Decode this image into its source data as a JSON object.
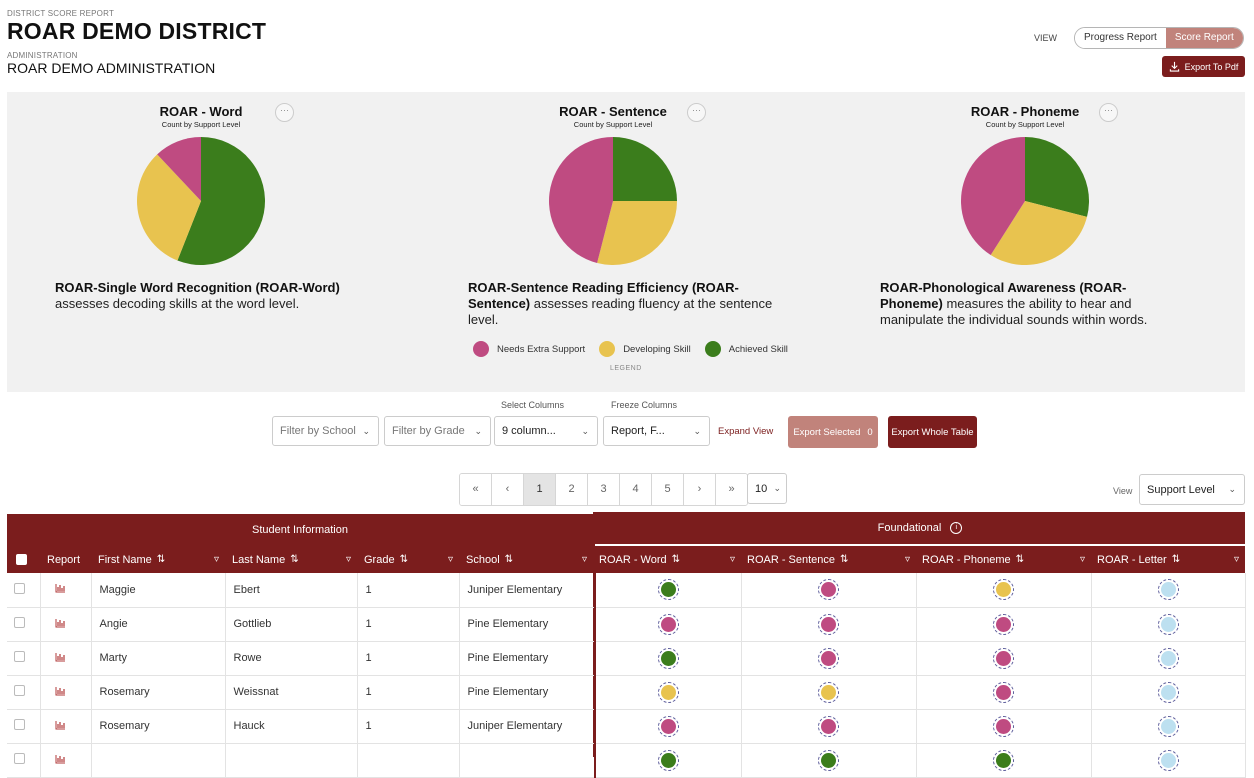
{
  "header": {
    "eyebrow": "DISTRICT SCORE REPORT",
    "district": "ROAR DEMO DISTRICT",
    "admin_eyebrow": "ADMINISTRATION",
    "admin_name": "ROAR DEMO ADMINISTRATION",
    "view_label": "VIEW",
    "toggle": [
      "Progress Report",
      "Score Report"
    ],
    "export_pdf": "Export To Pdf"
  },
  "colors": {
    "needs": "#bf4b81",
    "developing": "#e8c34f",
    "achieved": "#3b7d1c",
    "letter": "#bde0f0",
    "brand": "#7b1d1d"
  },
  "charts": [
    {
      "title": "ROAR - Word",
      "subtitle": "Count by Support Level",
      "desc_bold": "ROAR-Single Word Recognition (ROAR-Word)",
      "desc_rest": " assesses decoding skills at the word level."
    },
    {
      "title": "ROAR - Sentence",
      "subtitle": "Count by Support Level",
      "desc_bold": "ROAR-Sentence Reading Efficiency (ROAR-Sentence)",
      "desc_rest": " assesses reading fluency at the sentence level."
    },
    {
      "title": "ROAR - Phoneme",
      "subtitle": "Count by Support Level",
      "desc_bold": "ROAR-Phonological Awareness (ROAR-Phoneme)",
      "desc_rest": " measures the ability to hear and manipulate the individual sounds within words."
    }
  ],
  "chart_data": [
    {
      "type": "pie",
      "title": "ROAR - Word",
      "labels": [
        "Needs Extra Support",
        "Developing Skill",
        "Achieved Skill"
      ],
      "values": [
        12,
        32,
        56
      ]
    },
    {
      "type": "pie",
      "title": "ROAR - Sentence",
      "labels": [
        "Needs Extra Support",
        "Developing Skill",
        "Achieved Skill"
      ],
      "values": [
        46,
        29,
        25
      ]
    },
    {
      "type": "pie",
      "title": "ROAR - Phoneme",
      "labels": [
        "Needs Extra Support",
        "Developing Skill",
        "Achieved Skill"
      ],
      "values": [
        41,
        30,
        29
      ]
    }
  ],
  "legend": {
    "items": [
      "Needs Extra Support",
      "Developing Skill",
      "Achieved Skill"
    ],
    "caption": "LEGEND"
  },
  "toolbar": {
    "school_placeholder": "Filter by School",
    "grade_placeholder": "Filter by Grade",
    "select_columns_label": "Select Columns",
    "select_columns_value": "9 column...",
    "freeze_columns_label": "Freeze Columns",
    "freeze_columns_value": "Report, F...",
    "expand_view": "Expand View",
    "export_selected": "Export Selected",
    "export_selected_count": "0",
    "export_whole": "Export Whole Table"
  },
  "pagination": {
    "first": "«",
    "prev": "‹",
    "pages": [
      "1",
      "2",
      "3",
      "4",
      "5"
    ],
    "next": "›",
    "last": "»",
    "rows": "10"
  },
  "view_select": {
    "label": "View",
    "value": "Support Level"
  },
  "table": {
    "groups": [
      "Student Information",
      "Foundational"
    ],
    "columns": [
      "Report",
      "First Name",
      "Last Name",
      "Grade",
      "School",
      "ROAR - Word",
      "ROAR - Sentence",
      "ROAR - Phoneme",
      "ROAR - Letter"
    ],
    "rows": [
      {
        "first": "Maggie",
        "last": "Ebert",
        "grade": "1",
        "school": "Juniper Elementary",
        "word": "achieved",
        "sentence": "needs",
        "phoneme": "developing",
        "letter": "letter"
      },
      {
        "first": "Angie",
        "last": "Gottlieb",
        "grade": "1",
        "school": "Pine Elementary",
        "word": "needs",
        "sentence": "needs",
        "phoneme": "needs",
        "letter": "letter"
      },
      {
        "first": "Marty",
        "last": "Rowe",
        "grade": "1",
        "school": "Pine Elementary",
        "word": "achieved",
        "sentence": "needs",
        "phoneme": "needs",
        "letter": "letter"
      },
      {
        "first": "Rosemary",
        "last": "Weissnat",
        "grade": "1",
        "school": "Pine Elementary",
        "word": "developing",
        "sentence": "developing",
        "phoneme": "needs",
        "letter": "letter"
      },
      {
        "first": "Rosemary",
        "last": "Hauck",
        "grade": "1",
        "school": "Juniper Elementary",
        "word": "needs",
        "sentence": "needs",
        "phoneme": "needs",
        "letter": "letter"
      },
      {
        "first": "",
        "last": "",
        "grade": "",
        "school": "",
        "word": "achieved",
        "sentence": "achieved",
        "phoneme": "achieved",
        "letter": "letter"
      }
    ]
  }
}
